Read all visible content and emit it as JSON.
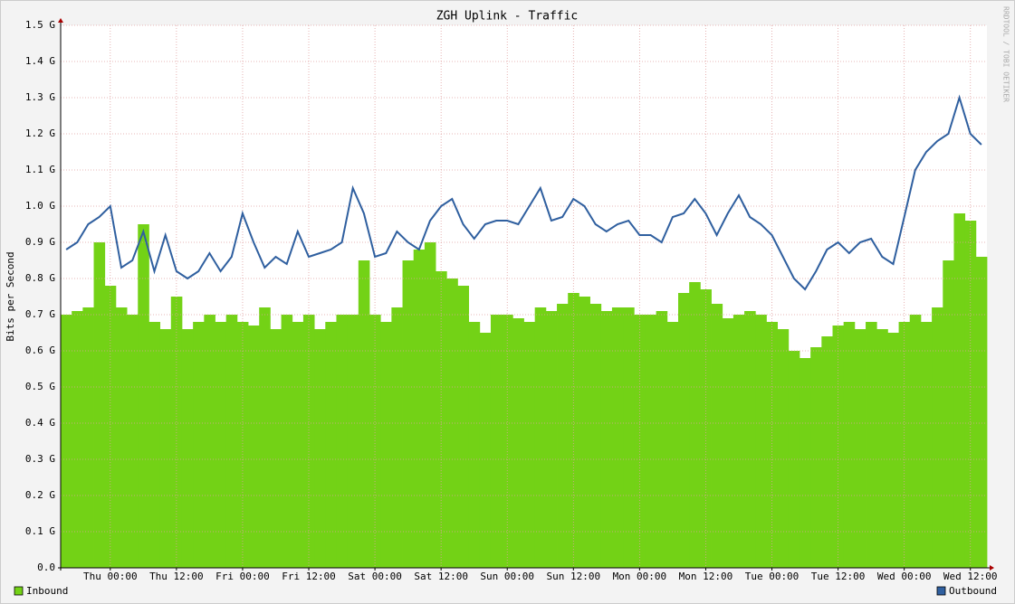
{
  "chart_data": {
    "type": "bar-line",
    "title": "ZGH Uplink - Traffic",
    "y_label": "Bits per Second",
    "watermark": "RRDTOOL / TOBI OETIKER",
    "x": [
      -8,
      -6,
      -4,
      -2,
      0,
      2,
      4,
      6,
      8,
      10,
      12,
      14,
      16,
      18,
      20,
      22,
      24,
      26,
      28,
      30,
      32,
      34,
      36,
      38,
      40,
      42,
      44,
      46,
      48,
      50,
      52,
      54,
      56,
      58,
      60,
      62,
      64,
      66,
      68,
      70,
      72,
      74,
      76,
      78,
      80,
      82,
      84,
      86,
      88,
      90,
      92,
      94,
      96,
      98,
      100,
      102,
      104,
      106,
      108,
      110,
      112,
      114,
      116,
      118,
      120,
      122,
      124,
      126,
      128,
      130,
      132,
      134,
      136,
      138,
      140,
      142,
      144,
      146,
      148,
      150,
      152,
      154,
      156,
      158
    ],
    "xlim": [
      -9,
      159
    ],
    "xticks": [
      {
        "value": 0,
        "label": "Thu 00:00"
      },
      {
        "value": 12,
        "label": "Thu 12:00"
      },
      {
        "value": 24,
        "label": "Fri 00:00"
      },
      {
        "value": 36,
        "label": "Fri 12:00"
      },
      {
        "value": 48,
        "label": "Sat 00:00"
      },
      {
        "value": 60,
        "label": "Sat 12:00"
      },
      {
        "value": 72,
        "label": "Sun 00:00"
      },
      {
        "value": 84,
        "label": "Sun 12:00"
      },
      {
        "value": 96,
        "label": "Mon 00:00"
      },
      {
        "value": 108,
        "label": "Mon 12:00"
      },
      {
        "value": 120,
        "label": "Tue 00:00"
      },
      {
        "value": 132,
        "label": "Tue 12:00"
      },
      {
        "value": 144,
        "label": "Wed 00:00"
      },
      {
        "value": 156,
        "label": "Wed 12:00"
      }
    ],
    "ylim": [
      0,
      1.5
    ],
    "yticks": [
      {
        "value": 0,
        "label": "0.0"
      },
      {
        "value": 0.1,
        "label": "0.1 G"
      },
      {
        "value": 0.2,
        "label": "0.2 G"
      },
      {
        "value": 0.3,
        "label": "0.3 G"
      },
      {
        "value": 0.4,
        "label": "0.4 G"
      },
      {
        "value": 0.5,
        "label": "0.5 G"
      },
      {
        "value": 0.6,
        "label": "0.6 G"
      },
      {
        "value": 0.7,
        "label": "0.7 G"
      },
      {
        "value": 0.8,
        "label": "0.8 G"
      },
      {
        "value": 0.9,
        "label": "0.9 G"
      },
      {
        "value": 1.0,
        "label": "1.0 G"
      },
      {
        "value": 1.1,
        "label": "1.1 G"
      },
      {
        "value": 1.2,
        "label": "1.2 G"
      },
      {
        "value": 1.3,
        "label": "1.3 G"
      },
      {
        "value": 1.4,
        "label": "1.4 G"
      },
      {
        "value": 1.5,
        "label": "1.5 G"
      }
    ],
    "grid": true,
    "series": [
      {
        "name": "Inbound",
        "color": "#73d216",
        "kind": "area",
        "legend": "bottom-left",
        "values": [
          0.7,
          0.71,
          0.72,
          0.9,
          0.78,
          0.72,
          0.7,
          0.95,
          0.68,
          0.66,
          0.75,
          0.66,
          0.68,
          0.7,
          0.68,
          0.7,
          0.68,
          0.67,
          0.72,
          0.66,
          0.7,
          0.68,
          0.7,
          0.66,
          0.68,
          0.7,
          0.7,
          0.85,
          0.7,
          0.68,
          0.72,
          0.85,
          0.88,
          0.9,
          0.82,
          0.8,
          0.78,
          0.68,
          0.65,
          0.7,
          0.7,
          0.69,
          0.68,
          0.72,
          0.71,
          0.73,
          0.76,
          0.75,
          0.73,
          0.71,
          0.72,
          0.72,
          0.7,
          0.7,
          0.71,
          0.68,
          0.76,
          0.79,
          0.77,
          0.73,
          0.69,
          0.7,
          0.71,
          0.7,
          0.68,
          0.66,
          0.6,
          0.58,
          0.61,
          0.64,
          0.67,
          0.68,
          0.66,
          0.68,
          0.66,
          0.65,
          0.68,
          0.7,
          0.68,
          0.72,
          0.85,
          0.98,
          0.96,
          0.86
        ]
      },
      {
        "name": "Outbound",
        "color": "#2f5f9f",
        "kind": "line",
        "legend": "bottom-right",
        "values": [
          0.88,
          0.9,
          0.95,
          0.97,
          1.0,
          0.83,
          0.85,
          0.93,
          0.82,
          0.92,
          0.82,
          0.8,
          0.82,
          0.87,
          0.82,
          0.86,
          0.98,
          0.9,
          0.83,
          0.86,
          0.84,
          0.93,
          0.86,
          0.87,
          0.88,
          0.9,
          1.05,
          0.98,
          0.86,
          0.87,
          0.93,
          0.9,
          0.88,
          0.96,
          1.0,
          1.02,
          0.95,
          0.91,
          0.95,
          0.96,
          0.96,
          0.95,
          1.0,
          1.05,
          0.96,
          0.97,
          1.02,
          1.0,
          0.95,
          0.93,
          0.95,
          0.96,
          0.92,
          0.92,
          0.9,
          0.97,
          0.98,
          1.02,
          0.98,
          0.92,
          0.98,
          1.03,
          0.97,
          0.95,
          0.92,
          0.86,
          0.8,
          0.77,
          0.82,
          0.88,
          0.9,
          0.87,
          0.9,
          0.91,
          0.86,
          0.84,
          0.97,
          1.1,
          1.15,
          1.18,
          1.2,
          1.3,
          1.2,
          1.17
        ]
      }
    ]
  }
}
